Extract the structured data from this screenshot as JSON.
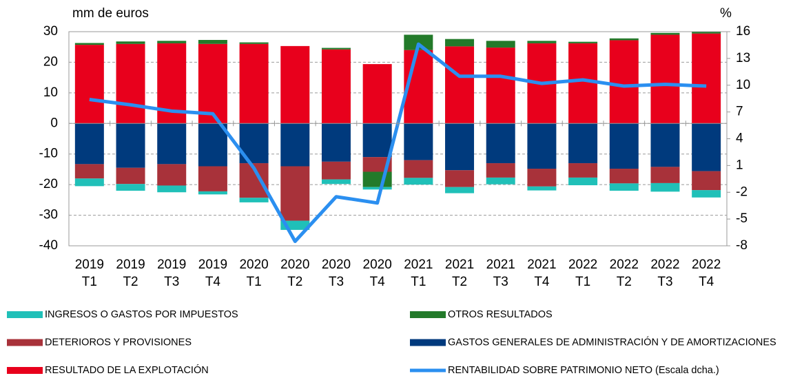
{
  "chart_data": {
    "type": "bar",
    "y_label": "mm de euros",
    "y2_label": "%",
    "categories": [
      "2019 T1",
      "2019 T2",
      "2019 T3",
      "2019 T4",
      "2020 T1",
      "2020 T2",
      "2020 T3",
      "2020 T4",
      "2021 T1",
      "2021 T2",
      "2021 T3",
      "2021 T4",
      "2022 T1",
      "2022 T2",
      "2022 T3",
      "2022 T4"
    ],
    "ylim": [
      -40,
      30
    ],
    "yticks": [
      -40,
      -30,
      -20,
      -10,
      0,
      10,
      20,
      30
    ],
    "y2lim": [
      -8,
      16
    ],
    "y2ticks": [
      -8,
      -5,
      -2,
      1,
      4,
      7,
      10,
      13,
      16
    ],
    "grid": true,
    "series": [
      {
        "name": "RESULTADO DE LA EXPLOTACIÓN",
        "color": "#e8001c",
        "values": [
          25.7,
          26.0,
          26.2,
          26.0,
          26.0,
          25.3,
          24.2,
          19.4,
          24.0,
          25.2,
          24.8,
          26.2,
          26.2,
          27.2,
          29.0,
          29.4
        ]
      },
      {
        "name": "GASTOS GENERALES DE ADMINISTRACIÓN Y DE AMORTIZACIONES",
        "color": "#003a7d",
        "values": [
          -13.3,
          -14.5,
          -13.3,
          -14.0,
          -13.0,
          -14.0,
          -12.5,
          -11.0,
          -12.0,
          -15.3,
          -13.0,
          -14.8,
          -13.0,
          -14.8,
          -14.2,
          -15.6
        ]
      },
      {
        "name": "DETERIOROS Y PROVISIONES",
        "color": "#a8323a",
        "values": [
          -4.7,
          -5.3,
          -7.0,
          -8.2,
          -11.3,
          -17.8,
          -5.8,
          -4.8,
          -5.8,
          -5.5,
          -4.7,
          -5.8,
          -4.7,
          -4.8,
          -5.3,
          -6.2
        ]
      },
      {
        "name": "OTROS RESULTADOS",
        "color": "#237a2a",
        "values": [
          0.6,
          0.8,
          0.8,
          1.3,
          0.5,
          0,
          0.5,
          -5.0,
          5.0,
          2.4,
          2.2,
          0.8,
          0.5,
          0.6,
          0.6,
          0.5
        ]
      },
      {
        "name": "INGRESOS O GASTOS POR IMPUESTOS",
        "color": "#20c0b8",
        "values": [
          -2.5,
          -2.2,
          -2.2,
          -1.0,
          -1.5,
          -3.0,
          -1.5,
          -0.8,
          -2.2,
          -2.0,
          -2.2,
          -1.3,
          -2.5,
          -2.4,
          -2.8,
          -2.4
        ]
      },
      {
        "name": "RENTABILIDAD SOBRE PATRIMONIO NETO (Escala dcha.)",
        "color": "#2b8ff0",
        "type": "line",
        "axis": "y2",
        "values": [
          8.4,
          7.8,
          7.1,
          6.8,
          0.7,
          -7.5,
          -2.5,
          -3.2,
          14.6,
          11.0,
          11.0,
          10.2,
          10.6,
          9.9,
          10.1,
          9.9
        ]
      }
    ]
  }
}
